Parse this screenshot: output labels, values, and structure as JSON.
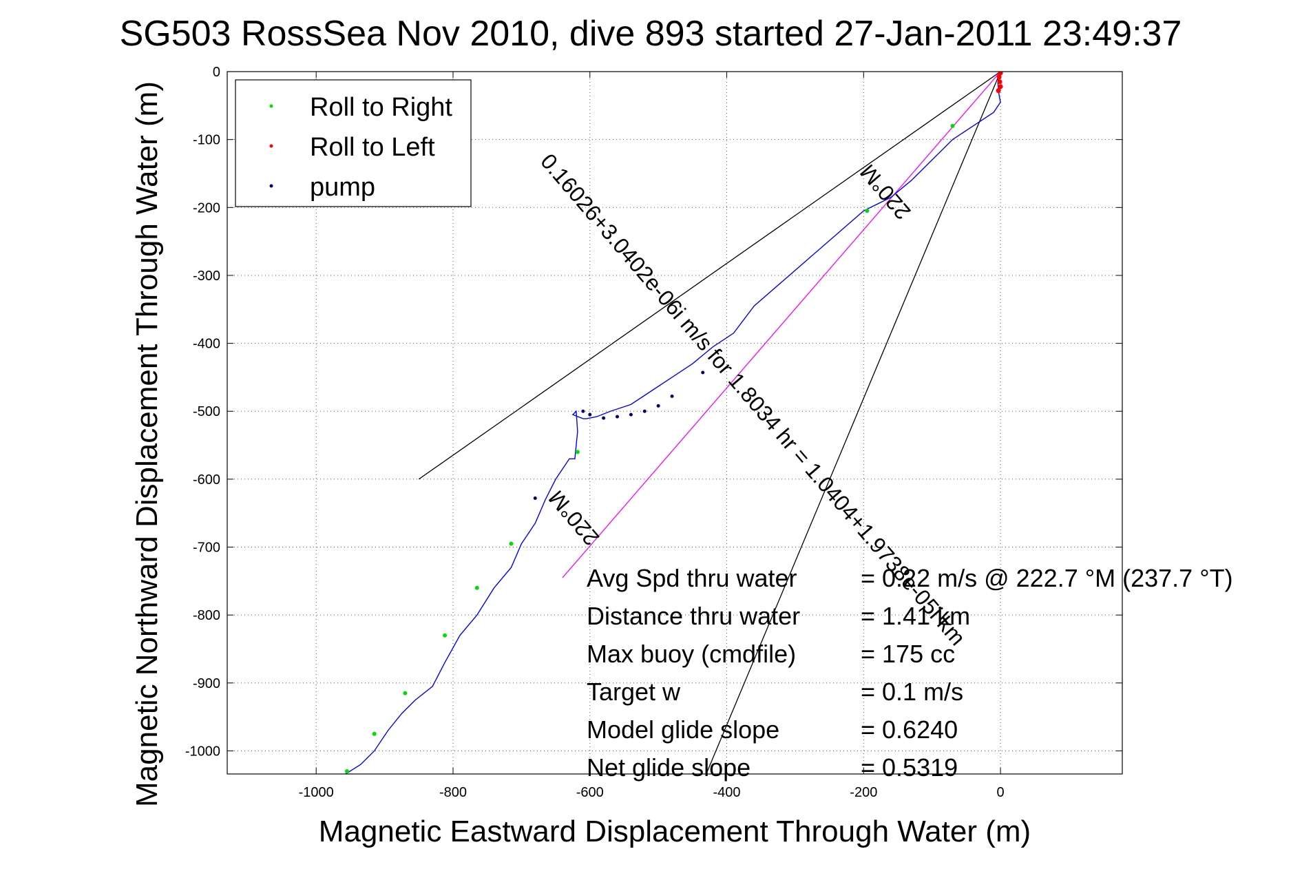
{
  "chart_data": {
    "type": "line",
    "title": "SG503 RossSea Nov 2010, dive 893 started 27-Jan-2011 23:49:37",
    "xlabel": "Magnetic Eastward Displacement Through Water (m)",
    "ylabel": "Magnetic Northward Displacement Through Water (m)",
    "xlim": [
      -1130,
      178
    ],
    "ylim": [
      -1034,
      0
    ],
    "xticks": [
      -1000,
      -800,
      -600,
      -400,
      -200,
      0
    ],
    "yticks": [
      0,
      -100,
      -200,
      -300,
      -400,
      -500,
      -600,
      -700,
      -800,
      -900,
      -1000
    ],
    "xtick_labels": [
      "-1000",
      "-800",
      "-600",
      "-400",
      "-200",
      "0"
    ],
    "ytick_labels": [
      "0",
      "-100",
      "-200",
      "-300",
      "-400",
      "-500",
      "-600",
      "-700",
      "-800",
      "-900",
      "-1000"
    ],
    "grid": true,
    "legend_position": "top-left",
    "legend": [
      {
        "label": "Roll to Right",
        "color": "#00dd00"
      },
      {
        "label": "Roll to Left",
        "color": "#ff0000"
      },
      {
        "label": "pump",
        "color": "#000066"
      }
    ],
    "track": {
      "color": "#0000ff",
      "x": [
        0,
        -4,
        -2,
        0,
        -10,
        -40,
        -70,
        -100,
        -130,
        -160,
        -190,
        -200,
        -240,
        -280,
        -320,
        -360,
        -390,
        -420,
        -450,
        -480,
        -510,
        -540,
        -570,
        -590,
        -605,
        -610,
        -625,
        -620,
        -618,
        -622,
        -630,
        -650,
        -665,
        -680,
        -700,
        -715,
        -740,
        -765,
        -790,
        -812,
        -830,
        -855,
        -875,
        -895,
        -915,
        -935,
        -957
      ],
      "y": [
        0,
        -15,
        -35,
        -45,
        -60,
        -80,
        -100,
        -130,
        -160,
        -185,
        -200,
        -205,
        -240,
        -275,
        -310,
        -345,
        -385,
        -405,
        -430,
        -450,
        -470,
        -490,
        -500,
        -508,
        -511,
        -511,
        -505,
        -500,
        -530,
        -570,
        -570,
        -600,
        -630,
        -665,
        -695,
        -730,
        -760,
        -800,
        -830,
        -870,
        -905,
        -925,
        -945,
        -970,
        -1000,
        -1020,
        -1034
      ]
    },
    "roll_right_points": {
      "x": [
        -70,
        -195,
        -618,
        -715,
        -765,
        -812,
        -870,
        -915,
        -955
      ],
      "y": [
        -80,
        -205,
        -560,
        -695,
        -760,
        -830,
        -915,
        -975,
        -1030
      ]
    },
    "roll_left_points": {
      "x": [
        0,
        -2,
        -1,
        0,
        -3
      ],
      "y": [
        -2,
        -8,
        -15,
        -22,
        -28
      ]
    },
    "pump_points": {
      "x": [
        -610,
        -600,
        -580,
        -560,
        -540,
        -520,
        -500,
        -480,
        -435,
        -680
      ],
      "y": [
        -500,
        -505,
        -510,
        -508,
        -505,
        -500,
        -492,
        -478,
        -443,
        -628
      ]
    },
    "reference_lines": [
      {
        "name": "upper-bound-line",
        "color": "#000000",
        "x": [
          0,
          -850
        ],
        "y": [
          0,
          -600
        ]
      },
      {
        "name": "lower-bound-line",
        "color": "#000000",
        "x": [
          0,
          -430
        ],
        "y": [
          0,
          -1034
        ]
      },
      {
        "name": "course-line",
        "color": "#ff00ff",
        "x": [
          0,
          -640
        ],
        "y": [
          0,
          -745
        ]
      }
    ],
    "annotations": [
      {
        "text": "0.16026+3.0402e-06i m/s for 1.8034 hr = 1.0404+1.9738e-05i km",
        "x": -370,
        "y": -490,
        "angle": 49.4
      },
      {
        "text": "220°M",
        "x": -160,
        "y": -170,
        "angle": 229.4
      },
      {
        "text": "220°M",
        "x": -615,
        "y": -650,
        "angle": 229.4
      }
    ],
    "stats": [
      {
        "label": "Avg Spd thru water",
        "value": "=  0.22 m/s @ 222.7 °M (237.7 °T)"
      },
      {
        "label": "Distance thru water",
        "value": "=  1.41 km"
      },
      {
        "label": "Max buoy (cmdfile)",
        "value": "= 175 cc"
      },
      {
        "label": "Target w",
        "value": "= 0.1 m/s"
      },
      {
        "label": "Model glide slope",
        "value": "= 0.6240"
      },
      {
        "label": "Net glide slope",
        "value": "= 0.5319"
      }
    ]
  }
}
